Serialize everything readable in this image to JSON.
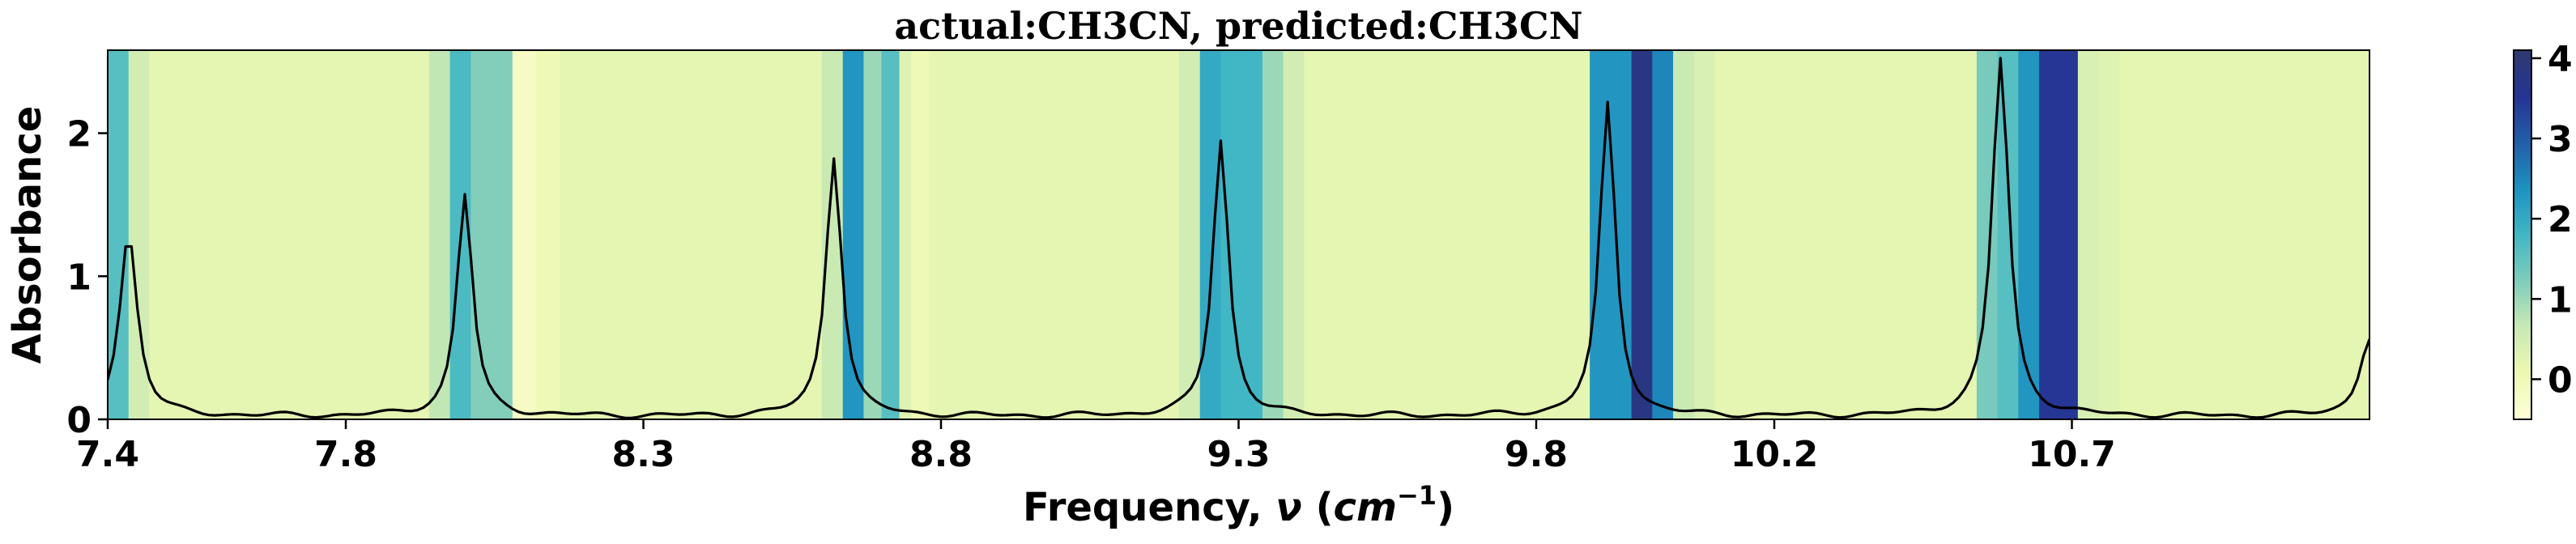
{
  "chart_data": {
    "type": "line",
    "title": "actual:CH3CN, predicted:CH3CN",
    "xlabel_prefix": "Frequency, ",
    "xlabel_symbol": "ν",
    "xlabel_unit_open": " (",
    "xlabel_unit": "cm",
    "xlabel_unit_exp": "−1",
    "xlabel_unit_close": ")",
    "ylabel": "Absorbance",
    "xlim": [
      7.4,
      11.2
    ],
    "ylim": [
      0,
      2.58
    ],
    "x_ticks": [
      {
        "value": 7.4,
        "label": "7.4"
      },
      {
        "value": 7.8,
        "label": "7.8"
      },
      {
        "value": 8.3,
        "label": "8.3"
      },
      {
        "value": 8.8,
        "label": "8.8"
      },
      {
        "value": 9.3,
        "label": "9.3"
      },
      {
        "value": 9.8,
        "label": "9.8"
      },
      {
        "value": 10.2,
        "label": "10.2"
      },
      {
        "value": 10.7,
        "label": "10.7"
      }
    ],
    "y_ticks": [
      {
        "value": 0,
        "label": "0"
      },
      {
        "value": 1,
        "label": "1"
      },
      {
        "value": 2,
        "label": "2"
      }
    ],
    "series": [
      {
        "line_color": "#000000",
        "peaks": [
          {
            "center": 7.435,
            "height": 1.28,
            "width": 0.018
          },
          {
            "center": 8.0,
            "height": 1.55,
            "width": 0.016
          },
          {
            "center": 8.62,
            "height": 1.82,
            "width": 0.016
          },
          {
            "center": 9.27,
            "height": 1.93,
            "width": 0.016
          },
          {
            "center": 9.92,
            "height": 2.18,
            "width": 0.016
          },
          {
            "center": 10.58,
            "height": 2.5,
            "width": 0.017
          },
          {
            "center": 11.2,
            "height": 0.55,
            "width": 0.02
          }
        ],
        "baseline": 0.02
      }
    ],
    "heatmap_bands": [
      {
        "x0": 7.4,
        "x1": 7.435,
        "value": 1.6
      },
      {
        "x0": 7.435,
        "x1": 7.47,
        "value": 0.5
      },
      {
        "x0": 7.47,
        "x1": 7.94,
        "value": 0.2
      },
      {
        "x0": 7.94,
        "x1": 7.975,
        "value": 0.7
      },
      {
        "x0": 7.975,
        "x1": 8.01,
        "value": 1.7
      },
      {
        "x0": 8.01,
        "x1": 8.08,
        "value": 1.2
      },
      {
        "x0": 8.08,
        "x1": 8.12,
        "value": -0.2
      },
      {
        "x0": 8.12,
        "x1": 8.16,
        "value": 0.0
      },
      {
        "x0": 8.16,
        "x1": 8.6,
        "value": 0.2
      },
      {
        "x0": 8.6,
        "x1": 8.635,
        "value": 0.6
      },
      {
        "x0": 8.635,
        "x1": 8.67,
        "value": 2.3
      },
      {
        "x0": 8.67,
        "x1": 8.7,
        "value": 1.0
      },
      {
        "x0": 8.7,
        "x1": 8.73,
        "value": 1.6
      },
      {
        "x0": 8.73,
        "x1": 8.75,
        "value": 0.3
      },
      {
        "x0": 8.75,
        "x1": 8.78,
        "value": 0.0
      },
      {
        "x0": 8.78,
        "x1": 9.2,
        "value": 0.2
      },
      {
        "x0": 9.2,
        "x1": 9.235,
        "value": 0.5
      },
      {
        "x0": 9.235,
        "x1": 9.27,
        "value": 2.0
      },
      {
        "x0": 9.27,
        "x1": 9.34,
        "value": 1.8
      },
      {
        "x0": 9.34,
        "x1": 9.375,
        "value": 1.0
      },
      {
        "x0": 9.375,
        "x1": 9.41,
        "value": 0.5
      },
      {
        "x0": 9.41,
        "x1": 9.89,
        "value": 0.2
      },
      {
        "x0": 9.89,
        "x1": 9.96,
        "value": 2.3
      },
      {
        "x0": 9.96,
        "x1": 9.995,
        "value": 3.8
      },
      {
        "x0": 9.995,
        "x1": 10.03,
        "value": 2.5
      },
      {
        "x0": 10.03,
        "x1": 10.065,
        "value": 0.6
      },
      {
        "x0": 10.065,
        "x1": 10.1,
        "value": 0.4
      },
      {
        "x0": 10.1,
        "x1": 10.54,
        "value": 0.2
      },
      {
        "x0": 10.54,
        "x1": 10.575,
        "value": 1.3
      },
      {
        "x0": 10.575,
        "x1": 10.61,
        "value": 1.6
      },
      {
        "x0": 10.61,
        "x1": 10.645,
        "value": 2.3
      },
      {
        "x0": 10.645,
        "x1": 10.71,
        "value": 3.5
      },
      {
        "x0": 10.71,
        "x1": 10.745,
        "value": 0.4
      },
      {
        "x0": 10.745,
        "x1": 10.78,
        "value": 0.3
      },
      {
        "x0": 10.78,
        "x1": 11.2,
        "value": 0.2
      }
    ],
    "colorbar": {
      "min": -0.5,
      "max": 4.1,
      "ticks": [
        {
          "value": 0,
          "label": "0"
        },
        {
          "value": 1,
          "label": "1"
        },
        {
          "value": 2,
          "label": "2"
        },
        {
          "value": 3,
          "label": "3"
        },
        {
          "value": 4,
          "label": "4"
        }
      ],
      "colormap": "YlGnBu",
      "colormap_stops": [
        "#ffffd9",
        "#edf8b1",
        "#c7e9b4",
        "#7fcdbb",
        "#41b6c4",
        "#1d91c0",
        "#225ea8",
        "#253494",
        "#2e3a6e"
      ]
    }
  }
}
